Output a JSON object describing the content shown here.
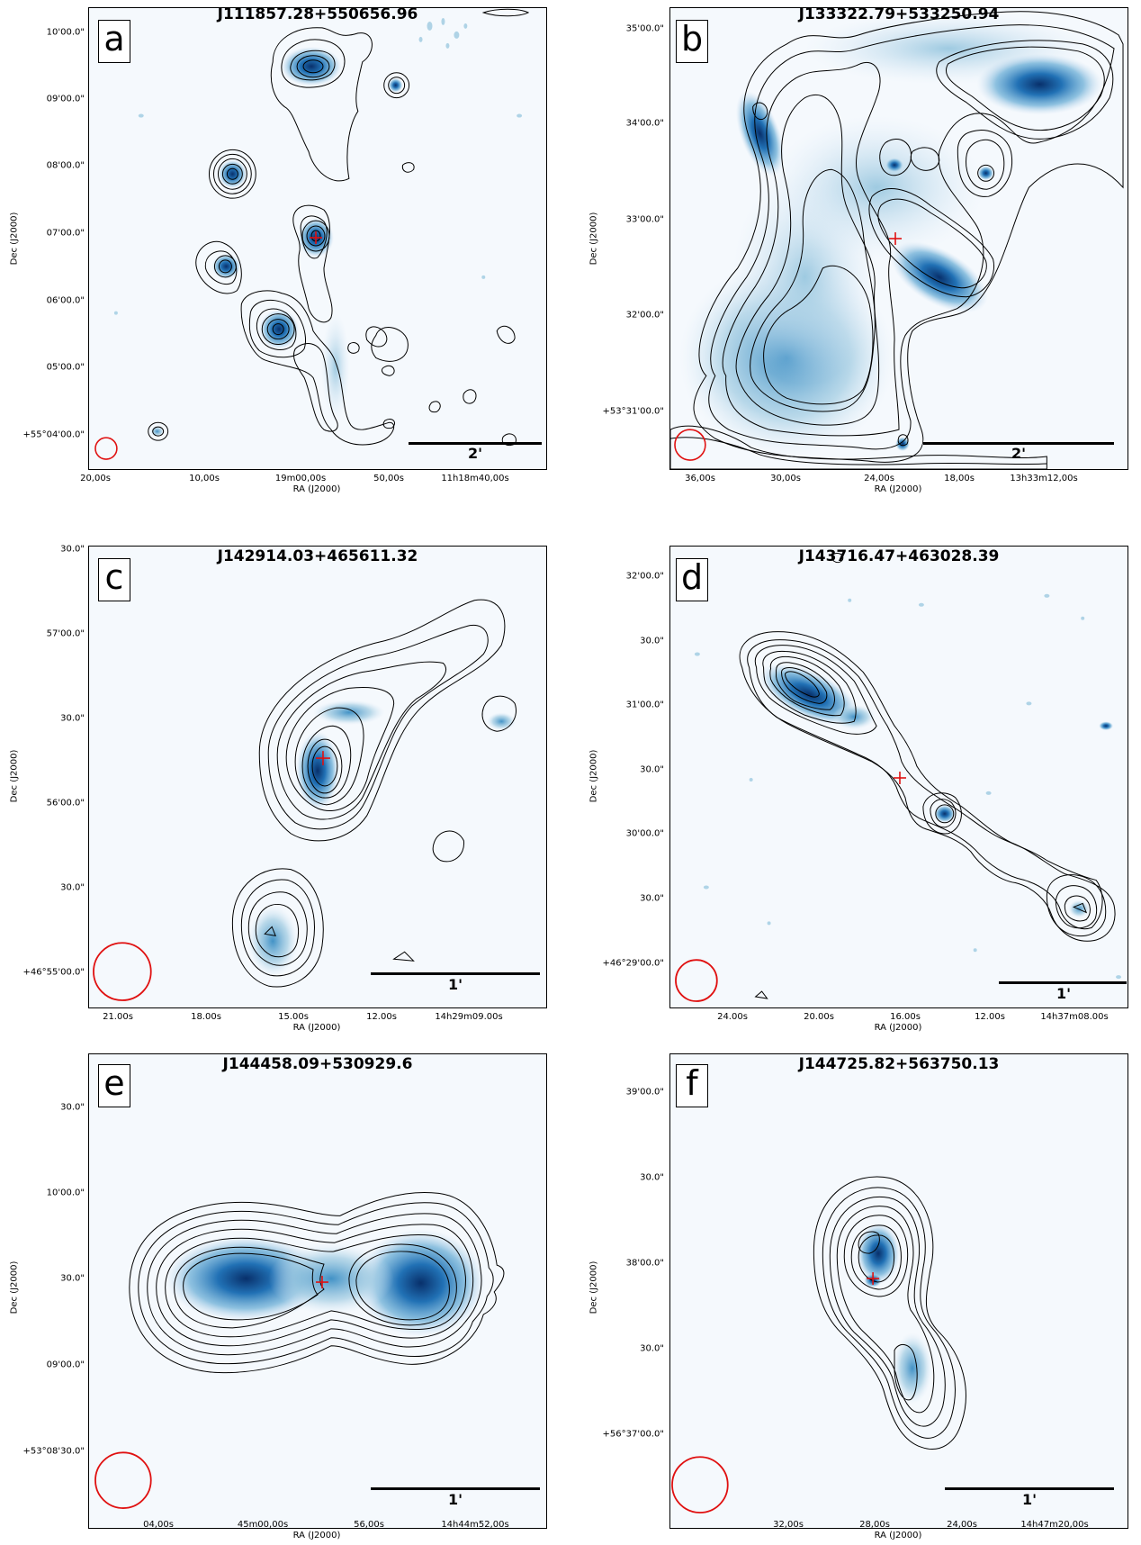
{
  "panels": {
    "a": {
      "letter": "a",
      "title": "J111857.28+550656.96",
      "scale": "2'",
      "yticks": [
        "10'00.0\"",
        "09'00.0\"",
        "08'00.0\"",
        "07'00.0\"",
        "06'00.0\"",
        "05'00.0\"",
        "+55°04'00.0\""
      ],
      "xticks": [
        "20,00s",
        "10,00s",
        "19m00,00s",
        "50,00s",
        "11h18m40,00s"
      ],
      "xlabel": "RA (J2000)",
      "ylabel": "Dec (J2000)"
    },
    "b": {
      "letter": "b",
      "title": "J133322.79+533250.94",
      "scale": "2'",
      "yticks": [
        "35'00.0\"",
        "34'00.0\"",
        "33'00.0\"",
        "32'00.0\"",
        "+53°31'00.0\""
      ],
      "xticks": [
        "36,00s",
        "30,00s",
        "24,00s",
        "18,00s",
        "13h33m12,00s"
      ],
      "xlabel": "RA (J2000)",
      "ylabel": "Dec (J2000)"
    },
    "c": {
      "letter": "c",
      "title": "J142914.03+465611.32",
      "scale": "1'",
      "yticks": [
        "30.0\"",
        "57'00.0\"",
        "30.0\"",
        "56'00.0\"",
        "30.0\"",
        "+46°55'00.0\""
      ],
      "xticks": [
        "21.00s",
        "18.00s",
        "15.00s",
        "12.00s",
        "14h29m09.00s"
      ],
      "xlabel": "RA (J2000)",
      "ylabel": "Dec (J2000)"
    },
    "d": {
      "letter": "d",
      "title": "J143716.47+463028.39",
      "scale": "1'",
      "yticks": [
        "32'00.0\"",
        "30.0\"",
        "31'00.0\"",
        "30.0\"",
        "30'00.0\"",
        "30.0\"",
        "+46°29'00.0\""
      ],
      "xticks": [
        "24.00s",
        "20.00s",
        "16.00s",
        "12.00s",
        "14h37m08.00s"
      ],
      "xlabel": "RA (J2000)",
      "ylabel": "Dec (J2000)"
    },
    "e": {
      "letter": "e",
      "title": "J144458.09+530929.6",
      "scale": "1'",
      "yticks": [
        "30.0\"",
        "10'00.0\"",
        "30.0\"",
        "09'00.0\"",
        "+53°08'30.0\""
      ],
      "xticks": [
        "04,00s",
        "45m00,00s",
        "56,00s",
        "14h44m52,00s"
      ],
      "xlabel": "RA (J2000)",
      "ylabel": "Dec (J2000)"
    },
    "f": {
      "letter": "f",
      "title": "J144725.82+563750.13",
      "scale": "1'",
      "yticks": [
        "39'00.0\"",
        "30.0\"",
        "38'00.0\"",
        "30.0\"",
        "+56°37'00.0\""
      ],
      "xticks": [
        "32,00s",
        "28,00s",
        "24,00s",
        "14h47m20,00s"
      ],
      "xlabel": "RA (J2000)",
      "ylabel": "Dec (J2000)"
    }
  },
  "colors": {
    "contour": "#000000",
    "beam": "#e01010",
    "marker": "#e01010",
    "emission_dark": "#08306b",
    "emission_mid": "#2171b5",
    "emission_light": "#9ecae1",
    "background": "#f5f9fd"
  }
}
